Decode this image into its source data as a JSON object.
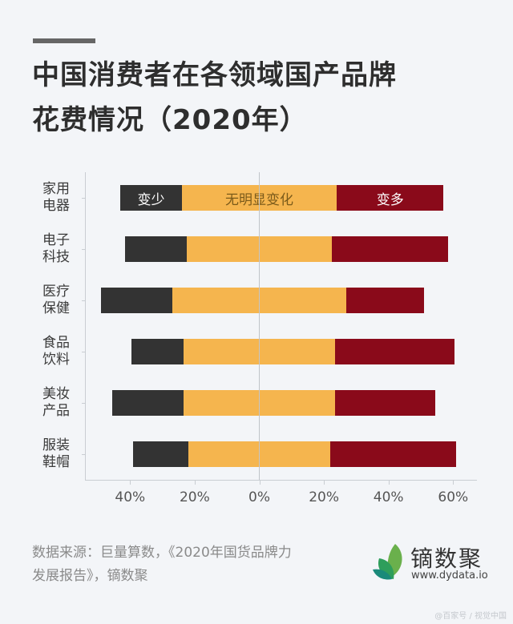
{
  "title": {
    "line1": "中国消费者在各领域国产品牌",
    "line2": "花费情况（2020年）"
  },
  "colors": {
    "less": "#333333",
    "same": "#f5b54e",
    "more": "#8a0a1a",
    "background": "#f3f5f8"
  },
  "chart_data": {
    "type": "bar",
    "orientation": "horizontal",
    "layout": "diverging-stacked",
    "title": "中国消费者在各领域国产品牌花费情况（2020年）",
    "categories": [
      "家用电器",
      "电子科技",
      "医疗保健",
      "食品饮料",
      "美妆产品",
      "服装鞋帽"
    ],
    "category_labels": [
      [
        "家用",
        "电器"
      ],
      [
        "电子",
        "科技"
      ],
      [
        "医疗",
        "保健"
      ],
      [
        "食品",
        "饮料"
      ],
      [
        "美妆",
        "产品"
      ],
      [
        "服装",
        "鞋帽"
      ]
    ],
    "series": [
      {
        "name": "变少",
        "color": "#333333",
        "values": [
          19,
          19,
          22,
          16,
          22,
          17
        ]
      },
      {
        "name": "无明显变化",
        "color": "#f5b54e",
        "values": [
          48,
          45,
          54,
          47,
          47,
          44
        ]
      },
      {
        "name": "变多",
        "color": "#8a0a1a",
        "values": [
          33,
          36,
          24,
          37,
          31,
          39
        ]
      }
    ],
    "xlabel": "",
    "ylabel": "",
    "xticks": [
      "40%",
      "20%",
      "0%",
      "20%",
      "40%",
      "60%"
    ],
    "xlim": [
      -40,
      60
    ],
    "grid": false,
    "legend": "inline labels on first bar",
    "source": "数据来源：巨量算数，《2020年国货品牌力发展报告》，镝数聚"
  },
  "footer": {
    "source_line1": "数据来源：巨量算数，《2020年国货品牌力",
    "source_line2": "发展报告》，镝数聚",
    "brand_name": "镝数聚",
    "brand_url": "www.dydata.io",
    "watermark": "@百家号 / 视觉中国"
  }
}
